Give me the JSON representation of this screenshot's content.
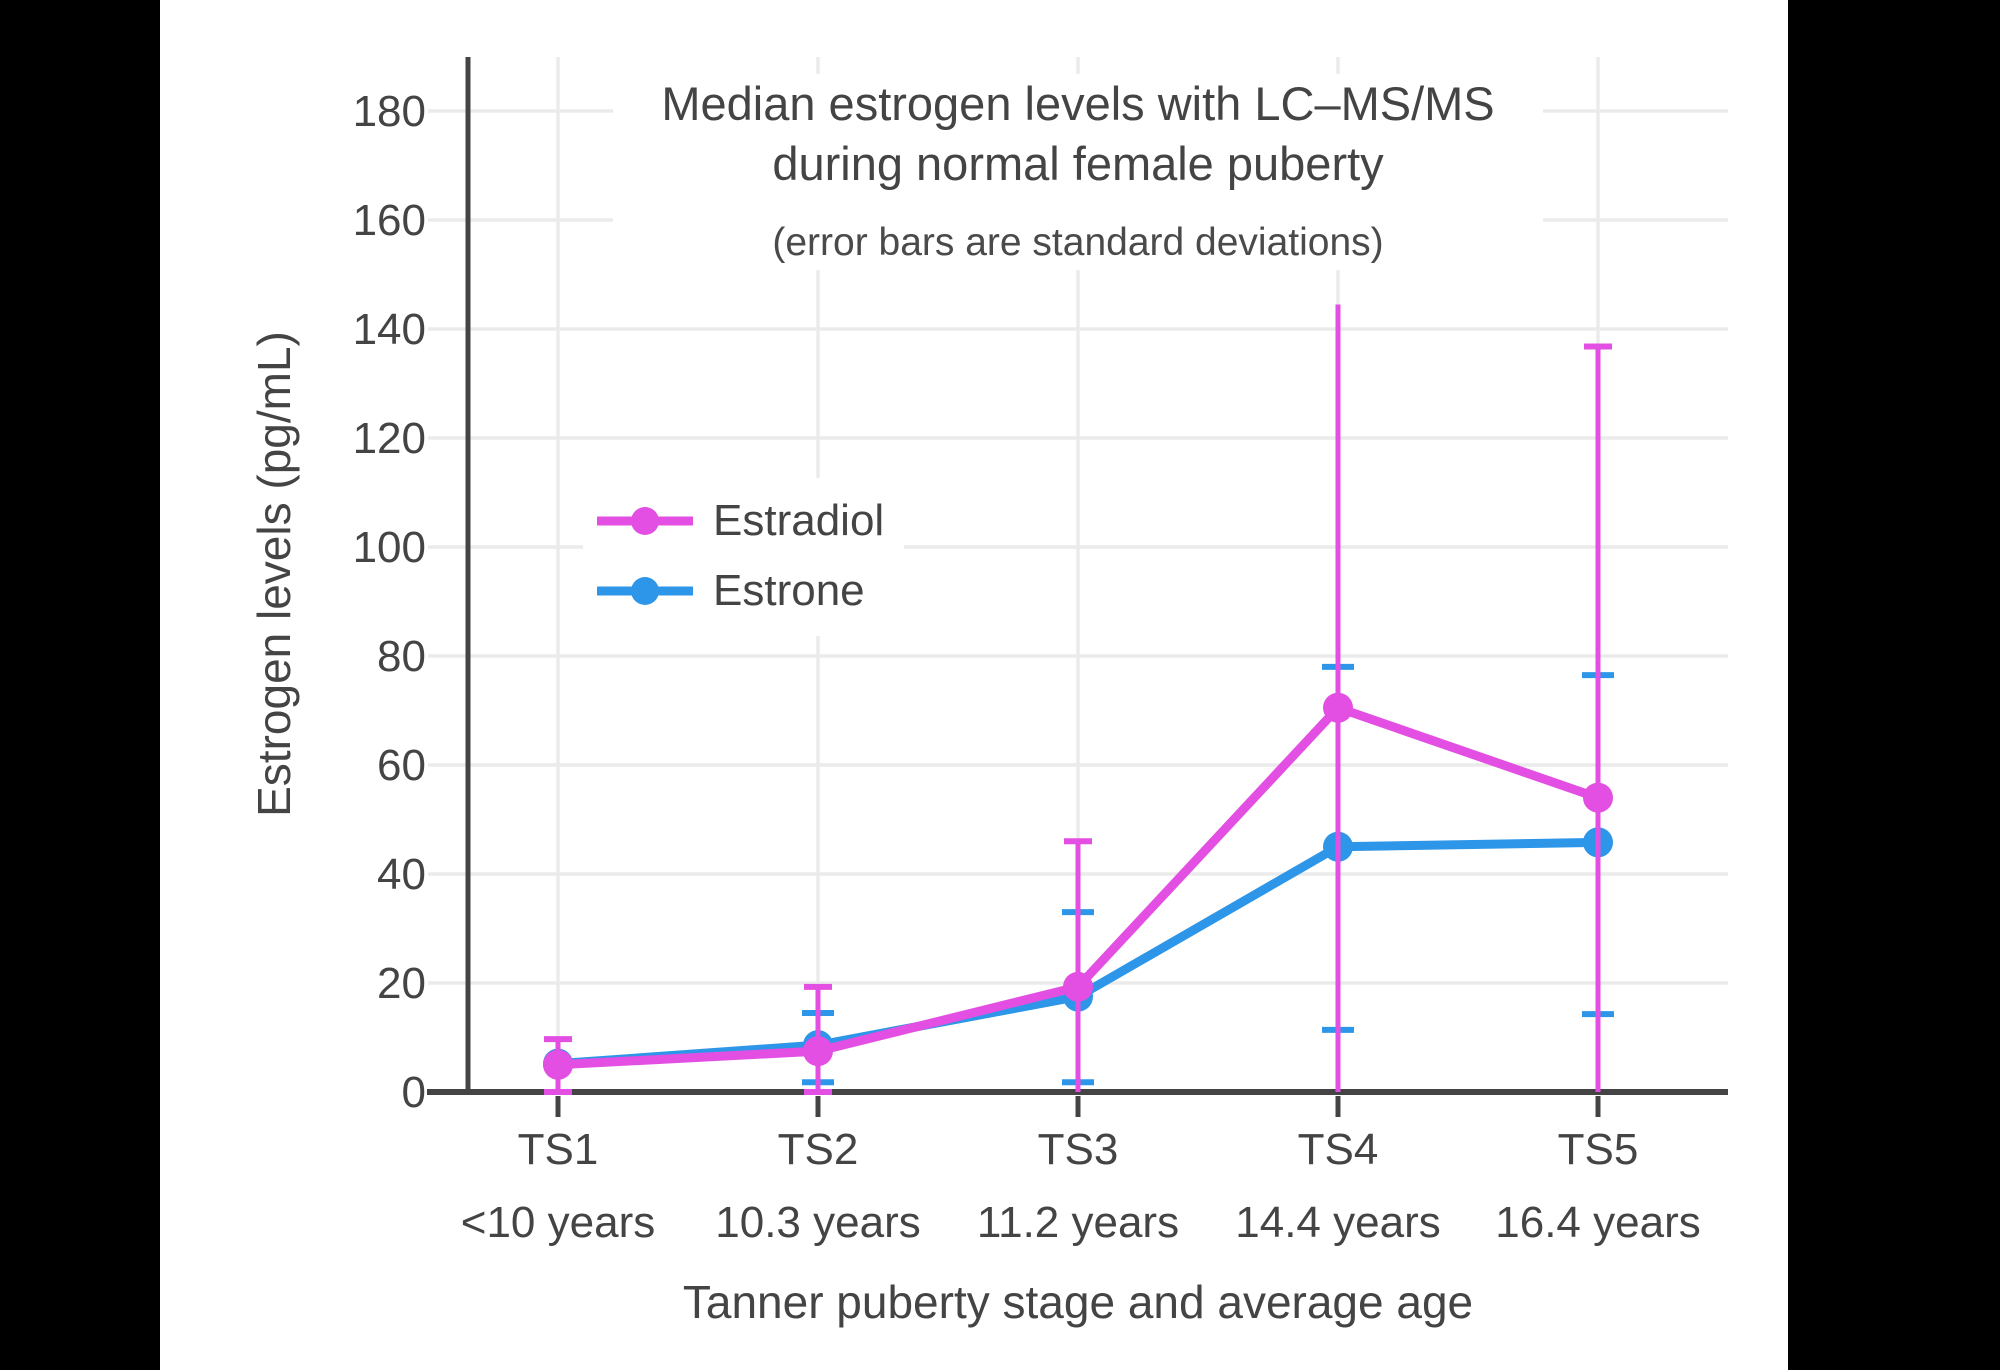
{
  "window": {
    "letterbox_color": "#000000",
    "panel_color": "#ffffff",
    "text_color": "#444444",
    "gridline_color": "#ebebeb",
    "axis_color": "#444444"
  },
  "chart_data": {
    "type": "line",
    "title_line1": "Median estrogen levels with LC–MS/MS",
    "title_line2": "during normal female puberty",
    "subtitle": "(error bars are standard deviations)",
    "ylabel": "Estrogen levels (pg/mL)",
    "xlabel": "Tanner puberty stage and average age",
    "categories": [
      {
        "stage": "TS1",
        "age": "<10 years"
      },
      {
        "stage": "TS2",
        "age": "10.3 years"
      },
      {
        "stage": "TS3",
        "age": "11.2 years"
      },
      {
        "stage": "TS4",
        "age": "14.4 years"
      },
      {
        "stage": "TS5",
        "age": "16.4 years"
      }
    ],
    "yticks": [
      0,
      20,
      40,
      60,
      80,
      100,
      120,
      140,
      160,
      180
    ],
    "ylim": [
      0,
      190
    ],
    "grid": true,
    "legend_position": "inside-upper-left",
    "series": [
      {
        "name": "Estradiol",
        "color": "#e24fe2",
        "values": [
          5,
          7.5,
          19.3,
          70.5,
          54
        ],
        "error_low": [
          0,
          0,
          0,
          0,
          0
        ],
        "error_high": [
          9.7,
          19.3,
          46,
          144.5,
          136.8
        ],
        "cap_low": [
          true,
          true,
          false,
          false,
          false
        ],
        "cap_high": [
          true,
          true,
          true,
          false,
          true
        ]
      },
      {
        "name": "Estrone",
        "color": "#2e96e8",
        "values": [
          5.2,
          8.6,
          17.5,
          45,
          45.8
        ],
        "error_low": [
          null,
          1.8,
          1.8,
          11.4,
          14.3
        ],
        "error_high": [
          null,
          14.5,
          33,
          78,
          76.5
        ],
        "cap_low": [
          false,
          true,
          true,
          true,
          true
        ],
        "cap_high": [
          false,
          true,
          true,
          true,
          true
        ]
      }
    ]
  }
}
